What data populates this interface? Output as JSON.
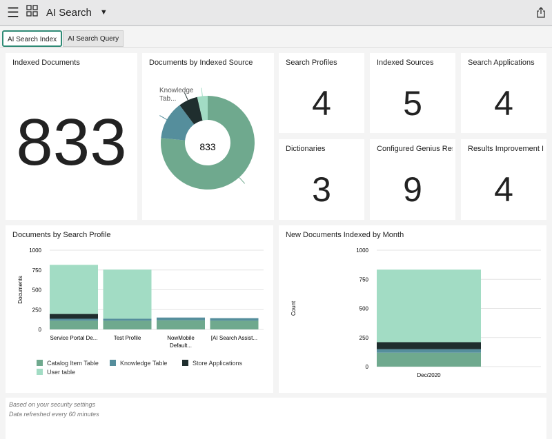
{
  "header": {
    "title": "AI Search",
    "menu_icon": "hamburger-icon",
    "apps_icon": "grid-icon",
    "share_icon": "share-icon"
  },
  "tabs": [
    {
      "label": "AI Search Index",
      "active": true
    },
    {
      "label": "AI Search Query",
      "active": false
    }
  ],
  "cards": {
    "indexed_documents": {
      "title": "Indexed Documents",
      "value": "833"
    },
    "search_profiles": {
      "title": "Search Profiles",
      "value": "4"
    },
    "indexed_sources": {
      "title": "Indexed Sources",
      "value": "5"
    },
    "search_applications": {
      "title": "Search Applications",
      "value": "4"
    },
    "dictionaries": {
      "title": "Dictionaries",
      "value": "3"
    },
    "genius": {
      "title": "Configured Genius Res",
      "value": "9"
    },
    "results_improvement": {
      "title": "Results Improvement I",
      "value": "4"
    }
  },
  "colors": {
    "catalog": "#6fa98e",
    "knowledge": "#558e9c",
    "store": "#1f2e2e",
    "user": "#a2dcc4"
  },
  "chart_data": [
    {
      "type": "pie",
      "title": "Documents by Indexed Source",
      "center_label": "833",
      "visible_label": "Knowledge Tab...",
      "slices": [
        {
          "name": "Catalog Item Table",
          "value": 638
        },
        {
          "name": "Knowledge Table",
          "value": 110
        },
        {
          "name": "Store Applications",
          "value": 55
        },
        {
          "name": "User table",
          "value": 30
        }
      ]
    },
    {
      "type": "bar",
      "stacked": true,
      "title": "Documents by Search Profile",
      "ylabel": "Documents",
      "ylim": [
        0,
        1000
      ],
      "yticks": [
        "0",
        "250",
        "500",
        "750",
        "1000"
      ],
      "categories": [
        "Service Portal De...",
        "Test Profile",
        "NowMobile Default...",
        "[AI Search Assist..."
      ],
      "series": [
        {
          "name": "Catalog Item Table",
          "values": [
            110,
            110,
            115,
            110
          ]
        },
        {
          "name": "Knowledge Table",
          "values": [
            25,
            25,
            35,
            32
          ]
        },
        {
          "name": "Store Applications",
          "values": [
            60,
            0,
            0,
            0
          ]
        },
        {
          "name": "User table",
          "values": [
            620,
            620,
            0,
            0
          ]
        }
      ],
      "legend": "bottom"
    },
    {
      "type": "bar",
      "stacked": true,
      "title": "New Documents Indexed by Month",
      "ylabel": "Count",
      "ylim": [
        0,
        1000
      ],
      "yticks": [
        "0",
        "250",
        "500",
        "750",
        "1000"
      ],
      "categories": [
        "Dec/2020"
      ],
      "series": [
        {
          "name": "Catalog Item Table",
          "values": [
            120
          ]
        },
        {
          "name": "Knowledge Table",
          "values": [
            30
          ]
        },
        {
          "name": "Store Applications",
          "values": [
            60
          ]
        },
        {
          "name": "User table",
          "values": [
            623
          ]
        }
      ]
    }
  ],
  "footer": {
    "line1": "Based on your security settings",
    "line2": "Data refreshed every 60 minutes"
  }
}
